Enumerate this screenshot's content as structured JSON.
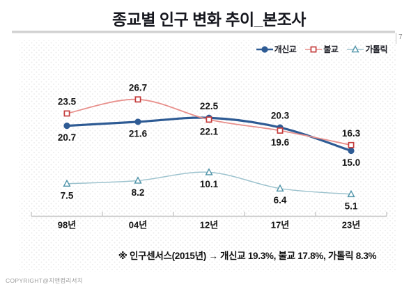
{
  "slide": {
    "title": "종교별 인구 변화 추이_본조사",
    "page_number": "7",
    "annotation": "※ 인구센서스(2015년) → 개신교 19.3%, 불교 17.8%, 가톨릭 8.3%",
    "copyright": "COPYRIGHT@지앤컴리서치"
  },
  "chart_data": {
    "type": "line",
    "title": "종교별 인구 변화 추이_본조사",
    "categories": [
      "98년",
      "04년",
      "12년",
      "17년",
      "23년"
    ],
    "series": [
      {
        "id": "protestant",
        "name": "개신교",
        "values": [
          20.7,
          21.6,
          22.5,
          20.3,
          15.0
        ],
        "marker": "circle-filled",
        "line_color": "#2E5B94",
        "marker_color": "#2E5B94",
        "line_width": 3.2,
        "label_side": [
          "below",
          "below",
          "above",
          "above",
          "below"
        ]
      },
      {
        "id": "buddhist",
        "name": "불교",
        "values": [
          23.5,
          26.7,
          22.1,
          19.6,
          16.3
        ],
        "marker": "square-open",
        "line_color": "#E8908C",
        "marker_color": "#C43C3C",
        "line_width": 1.8,
        "label_side": [
          "above",
          "above",
          "below",
          "below",
          "above"
        ]
      },
      {
        "id": "catholic",
        "name": "가톨릭",
        "values": [
          7.5,
          8.2,
          10.1,
          6.4,
          5.1
        ],
        "marker": "triangle-open",
        "line_color": "#9DC3CE",
        "marker_color": "#4E93A8",
        "line_width": 1.5,
        "label_side": [
          "below",
          "below",
          "below",
          "below",
          "below"
        ]
      }
    ],
    "ylim": [
      0,
      32
    ],
    "grid": false,
    "legend_position": "top-right",
    "axis_color": "#BFBFBF",
    "label_color": "#161616",
    "smoothed_lines": true
  }
}
